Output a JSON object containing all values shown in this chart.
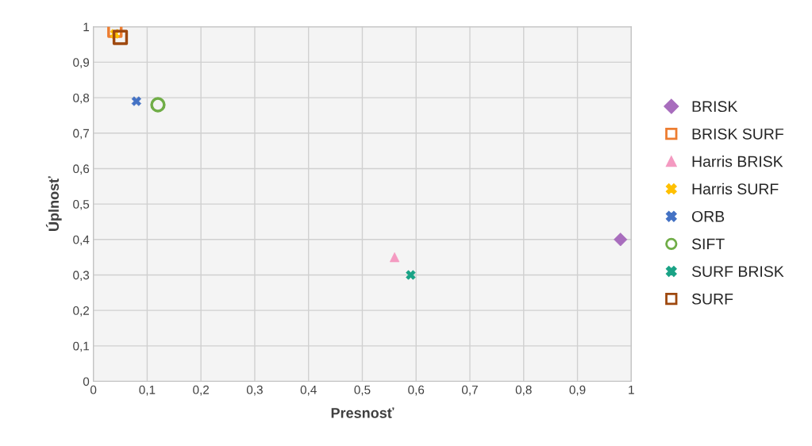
{
  "chart_data": {
    "type": "scatter",
    "xlabel": "Presnosť",
    "ylabel": "Úplnosť",
    "series": [
      {
        "name": "BRISK",
        "color": "#a86dbd",
        "marker": "diamond",
        "x": [
          0.98
        ],
        "values": [
          0.4
        ]
      },
      {
        "name": "BRISK SURF",
        "color": "#ed7d31",
        "marker": "square",
        "x": [
          0.04
        ],
        "values": [
          0.99
        ]
      },
      {
        "name": "Harris BRISK",
        "color": "#f49ac1",
        "marker": "triangle",
        "x": [
          0.56
        ],
        "values": [
          0.35
        ]
      },
      {
        "name": "Harris SURF",
        "color": "#ffc000",
        "marker": "cross",
        "x": [
          0.04
        ],
        "values": [
          0.98
        ]
      },
      {
        "name": "ORB",
        "color": "#4472c4",
        "marker": "cross",
        "x": [
          0.08
        ],
        "values": [
          0.79
        ]
      },
      {
        "name": "SIFT",
        "color": "#70ad47",
        "marker": "circle",
        "x": [
          0.12
        ],
        "values": [
          0.78
        ]
      },
      {
        "name": "SURF BRISK",
        "color": "#1aa386",
        "marker": "cross",
        "x": [
          0.59
        ],
        "values": [
          0.3
        ]
      },
      {
        "name": "SURF",
        "color": "#9e480e",
        "marker": "square",
        "x": [
          0.05
        ],
        "values": [
          0.97
        ]
      }
    ],
    "xlim": [
      0,
      1
    ],
    "ylim": [
      0,
      1
    ],
    "xticks": [
      0,
      {
        "value": 0.1,
        "label": "0,1"
      },
      {
        "value": 0.2,
        "label": "0,2"
      },
      {
        "value": 0.3,
        "label": "0,3"
      },
      {
        "value": 0.4,
        "label": "0,4"
      },
      {
        "value": 0.5,
        "label": "0,5"
      },
      {
        "value": 0.6,
        "label": "0,6"
      },
      {
        "value": 0.7,
        "label": "0,7"
      },
      {
        "value": 0.8,
        "label": "0,8"
      },
      {
        "value": 0.9,
        "label": "0,9"
      },
      1
    ],
    "yticks": [
      0,
      {
        "value": 0.1,
        "label": "0,1"
      },
      {
        "value": 0.2,
        "label": "0,2"
      },
      {
        "value": 0.3,
        "label": "0,3"
      },
      {
        "value": 0.4,
        "label": "0,4"
      },
      {
        "value": 0.5,
        "label": "0,5"
      },
      {
        "value": 0.6,
        "label": "0,6"
      },
      {
        "value": 0.7,
        "label": "0,7"
      },
      {
        "value": 0.8,
        "label": "0,8"
      },
      {
        "value": 0.9,
        "label": "0,9"
      },
      1
    ],
    "grid": true,
    "legend": "right"
  }
}
